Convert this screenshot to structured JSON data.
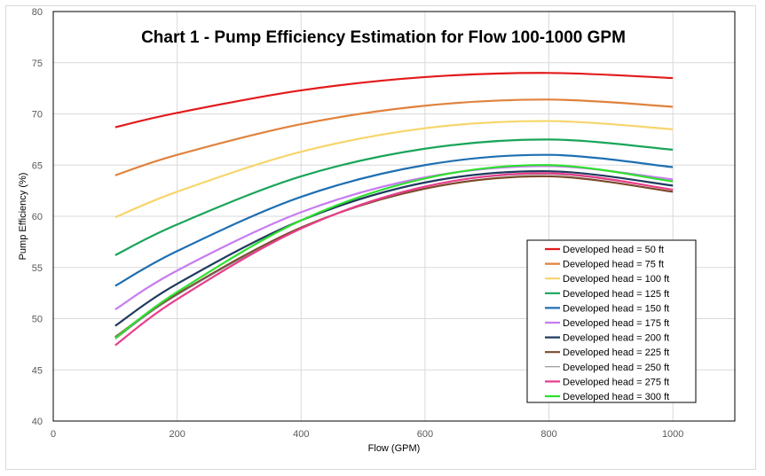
{
  "chart_data": {
    "type": "line",
    "title": "Chart 1 - Pump Efficiency Estimation for Flow 100-1000 GPM",
    "xlabel": "Flow (GPM)",
    "ylabel": "Pump Efficiency (%)",
    "xlim": [
      0,
      1100
    ],
    "ylim": [
      40,
      80
    ],
    "xticks": [
      0,
      200,
      400,
      600,
      800,
      1000
    ],
    "yticks": [
      40,
      45,
      50,
      55,
      60,
      65,
      70,
      75,
      80
    ],
    "grid": true,
    "legend_position": "right-bottom inside",
    "x": [
      100,
      200,
      400,
      600,
      800,
      1000
    ],
    "series": [
      {
        "name": "Developed head = 50 ft",
        "color": "#e31a1c",
        "values": [
          68.7,
          70.1,
          72.3,
          73.6,
          74.0,
          73.5
        ]
      },
      {
        "name": "Developed head = 75 ft",
        "color": "#e0823d",
        "values": [
          64.0,
          66.0,
          69.0,
          70.8,
          71.4,
          70.7
        ]
      },
      {
        "name": "Developed head = 100 ft",
        "color": "#f7d56b",
        "values": [
          59.9,
          62.4,
          66.3,
          68.6,
          69.3,
          68.5
        ]
      },
      {
        "name": "Developed head = 125 ft",
        "color": "#1aa55a",
        "values": [
          56.2,
          59.2,
          63.9,
          66.6,
          67.5,
          66.5
        ]
      },
      {
        "name": "Developed head = 150 ft",
        "color": "#1f6fb2",
        "values": [
          53.2,
          56.6,
          61.9,
          65.0,
          66.0,
          64.8
        ]
      },
      {
        "name": "Developed head = 175 ft",
        "color": "#c77cf0",
        "values": [
          50.9,
          54.7,
          60.4,
          63.8,
          64.9,
          63.6
        ]
      },
      {
        "name": "Developed head = 200 ft",
        "color": "#1f3a5f",
        "values": [
          49.3,
          53.4,
          59.6,
          63.3,
          64.4,
          63.0
        ]
      },
      {
        "name": "Developed head = 225 ft",
        "color": "#7b4a2a",
        "values": [
          48.2,
          52.4,
          58.9,
          62.7,
          63.9,
          62.4
        ]
      },
      {
        "name": "Developed head = 250 ft",
        "color": "#808080",
        "values": [
          48.0,
          52.3,
          58.8,
          62.9,
          64.1,
          62.6
        ]
      },
      {
        "name": "Developed head = 275 ft",
        "color": "#e83e8c",
        "values": [
          47.4,
          51.9,
          58.8,
          62.9,
          64.2,
          62.6
        ]
      },
      {
        "name": "Developed head = 300 ft",
        "color": "#2ee02e",
        "values": [
          48.1,
          52.6,
          59.6,
          63.7,
          65.0,
          63.4
        ]
      }
    ]
  }
}
